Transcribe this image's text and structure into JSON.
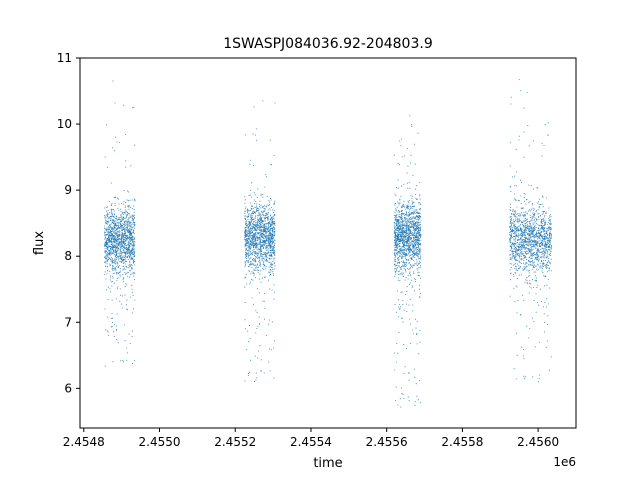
{
  "chart_data": {
    "type": "scatter",
    "title": "1SWASPJ084036.92-204803.9",
    "xlabel": "time",
    "ylabel": "flux",
    "x_offset_label": "1e6",
    "xlim": [
      2454790,
      2456100
    ],
    "ylim": [
      5.4,
      11.0
    ],
    "x_ticks": [
      2454800,
      2455000,
      2455200,
      2455400,
      2455600,
      2455800,
      2456000
    ],
    "x_tick_labels": [
      "2.4548",
      "2.4550",
      "2.4552",
      "2.4554",
      "2.4556",
      "2.4558",
      "2.4560"
    ],
    "y_ticks": [
      6,
      7,
      8,
      9,
      10,
      11
    ],
    "y_tick_labels": [
      "6",
      "7",
      "8",
      "9",
      "10",
      "11"
    ],
    "grid": false,
    "marker_color": "#1f77b4",
    "clusters": [
      {
        "x_range": [
          2454855,
          2454935
        ],
        "y_center": 8.25,
        "y_spread": 0.25,
        "low_tail": 6.3,
        "high_tail": 10.7
      },
      {
        "x_range": [
          2455225,
          2455305
        ],
        "y_center": 8.3,
        "y_spread": 0.25,
        "low_tail": 6.1,
        "high_tail": 10.4
      },
      {
        "x_range": [
          2455620,
          2455690
        ],
        "y_center": 8.3,
        "y_spread": 0.25,
        "low_tail": 5.7,
        "high_tail": 10.2
      },
      {
        "x_range": [
          2455925,
          2456035
        ],
        "y_center": 8.25,
        "y_spread": 0.25,
        "low_tail": 6.1,
        "high_tail": 10.7
      }
    ]
  }
}
